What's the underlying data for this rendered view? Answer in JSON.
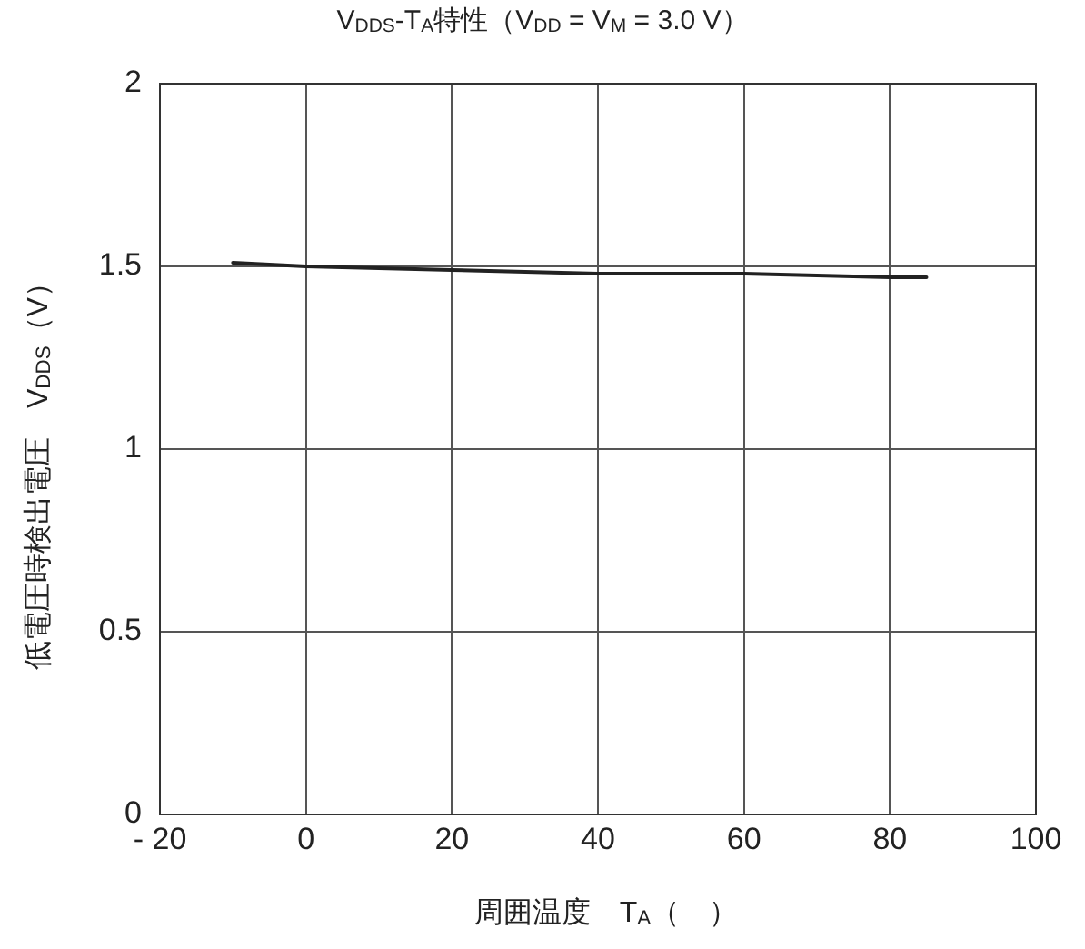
{
  "chart_data": {
    "type": "line",
    "title": "V$_{DDS}$-T$_{A}$特性（V$_{DD}$ = V$_{M}$ = 3.0 V）",
    "xlabel": "周囲温度　T$_{A}$（　）",
    "ylabel": "低電圧時検出電圧　V$_{DDS}$（V）",
    "x": [
      -10,
      0,
      20,
      40,
      60,
      80,
      85
    ],
    "series": [
      {
        "color": "#222222",
        "values": [
          1.51,
          1.5,
          1.49,
          1.48,
          1.48,
          1.47,
          1.47
        ]
      }
    ],
    "xlim": [
      -20,
      100
    ],
    "xticks": [
      {
        "value": -20,
        "label": "- 20"
      },
      0,
      20,
      40,
      60,
      80,
      100
    ],
    "ylim": [
      0,
      2
    ],
    "yticks": [
      0,
      0.5,
      1,
      1.5,
      2
    ],
    "grid": true,
    "legend": false,
    "marker": "none",
    "line_style": "solid"
  }
}
